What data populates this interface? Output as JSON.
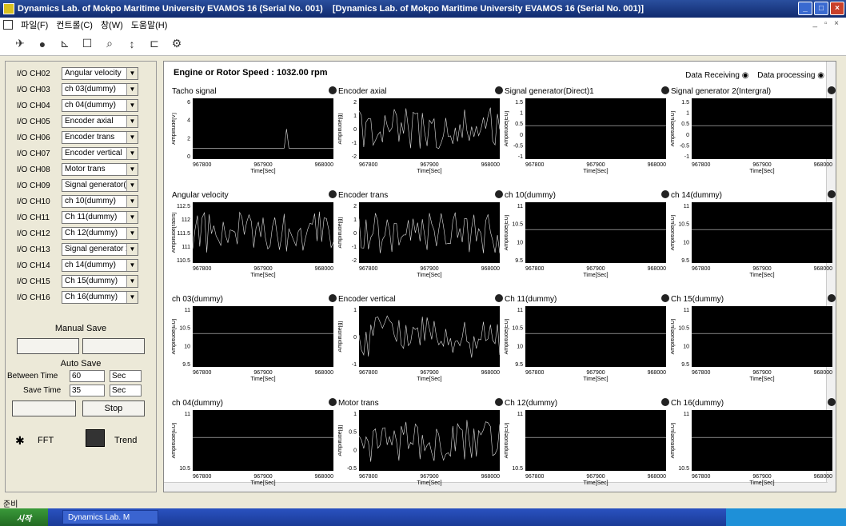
{
  "window": {
    "title1": "Dynamics Lab. of Mokpo Maritime University EVAMOS 16 (Serial No. 001)",
    "title2": "[Dynamics Lab. of Mokpo Maritime University EVAMOS 16 (Serial No. 001)]"
  },
  "menu": [
    {
      "label": "파일(F)"
    },
    {
      "label": "컨트롤(C)"
    },
    {
      "label": "창(W)"
    },
    {
      "label": "도움말(H)"
    }
  ],
  "channels": [
    {
      "label": "I/O CH02",
      "value": "Angular velocity"
    },
    {
      "label": "I/O CH03",
      "value": "ch 03(dummy)"
    },
    {
      "label": "I/O CH04",
      "value": "ch 04(dummy)"
    },
    {
      "label": "I/O CH05",
      "value": "Encoder axial"
    },
    {
      "label": "I/O CH06",
      "value": "Encoder trans"
    },
    {
      "label": "I/O CH07",
      "value": "Encoder vertical"
    },
    {
      "label": "I/O CH08",
      "value": "Motor trans"
    },
    {
      "label": "I/O CH09",
      "value": "Signal generator("
    },
    {
      "label": "I/O CH10",
      "value": "ch 10(dummy)"
    },
    {
      "label": "I/O CH11",
      "value": "Ch 11(dummy)"
    },
    {
      "label": "I/O CH12",
      "value": "Ch 12(dummy)"
    },
    {
      "label": "I/O CH13",
      "value": "Signal generator 2"
    },
    {
      "label": "I/O CH14",
      "value": "ch 14(dummy)"
    },
    {
      "label": "I/O CH15",
      "value": "Ch 15(dummy)"
    },
    {
      "label": "I/O CH16",
      "value": "Ch 16(dummy)"
    }
  ],
  "manual_save": {
    "title": "Manual Save"
  },
  "auto_save": {
    "title": "Auto Save",
    "between_label": "Between Time",
    "between_value": "60",
    "between_unit": "Sec",
    "save_label": "Save Time",
    "save_value": "35",
    "save_unit": "Sec",
    "stop_label": "Stop"
  },
  "buttons": {
    "fft": "FFT",
    "trend": "Trend"
  },
  "header": {
    "speed": "Engine or Rotor Speed : 1032.00 rpm",
    "receiving": "Data Receiving",
    "processing": "Data processing"
  },
  "x_ticks": [
    "967800",
    "967900",
    "968000"
  ],
  "x_label": "Time[Sec]",
  "charts": [
    {
      "title": "Tacho signal",
      "ylabel": "Amplitude[V]",
      "yticks": [
        "6",
        "4",
        "2",
        "0"
      ]
    },
    {
      "title": "Encoder axial",
      "ylabel": "Amplitude[g]",
      "yticks": [
        "2",
        "1",
        "0",
        "-1",
        "-2"
      ]
    },
    {
      "title": "Signal generator(Direct)1",
      "ylabel": "Amplitude[EU]",
      "yticks": [
        "1.5",
        "1",
        "0.5",
        "0",
        "-0.5",
        "-1"
      ]
    },
    {
      "title": "Signal generator 2(Intergral)",
      "ylabel": "Amplitude[EU]",
      "yticks": [
        "1.5",
        "1",
        "0.5",
        "0",
        "-0.5",
        "-1"
      ]
    },
    {
      "title": "Angular velocity",
      "ylabel": "Amplitude[rad/s]",
      "yticks": [
        "112.5",
        "112",
        "111.5",
        "111",
        "110.5"
      ]
    },
    {
      "title": "Encoder trans",
      "ylabel": "Amplitude[g]",
      "yticks": [
        "2",
        "1",
        "0",
        "-1",
        "-2"
      ]
    },
    {
      "title": "ch 10(dummy)",
      "ylabel": "Amplitude[EU]",
      "yticks": [
        "11",
        "10.5",
        "10",
        "9.5"
      ]
    },
    {
      "title": "ch 14(dummy)",
      "ylabel": "Amplitude[EU]",
      "yticks": [
        "11",
        "10.5",
        "10",
        "9.5"
      ]
    },
    {
      "title": "ch 03(dummy)",
      "ylabel": "Amplitude[EU]",
      "yticks": [
        "11",
        "10.5",
        "10",
        "9.5"
      ]
    },
    {
      "title": "Encoder vertical",
      "ylabel": "Amplitude[g]",
      "yticks": [
        "1",
        "0",
        "-1"
      ]
    },
    {
      "title": "Ch 11(dummy)",
      "ylabel": "Amplitude[EU]",
      "yticks": [
        "11",
        "10.5",
        "10",
        "9.5"
      ]
    },
    {
      "title": "Ch 15(dummy)",
      "ylabel": "Amplitude[EU]",
      "yticks": [
        "11",
        "10.5",
        "10",
        "9.5"
      ]
    },
    {
      "title": "ch 04(dummy)",
      "ylabel": "Amplitude[EU]",
      "yticks": [
        "11",
        "10.5"
      ]
    },
    {
      "title": "Motor trans",
      "ylabel": "Amplitude[g]",
      "yticks": [
        "1",
        "0.5",
        "0",
        "-0.5"
      ]
    },
    {
      "title": "Ch 12(dummy)",
      "ylabel": "Amplitude[EU]",
      "yticks": [
        "11",
        "10.5"
      ]
    },
    {
      "title": "Ch 16(dummy)",
      "ylabel": "Amplitude[EU]",
      "yticks": [
        "11",
        "10.5"
      ]
    }
  ],
  "statusbar": {
    "text": "준비"
  },
  "taskbar": {
    "start": "시작",
    "item": "Dynamics Lab. M"
  }
}
